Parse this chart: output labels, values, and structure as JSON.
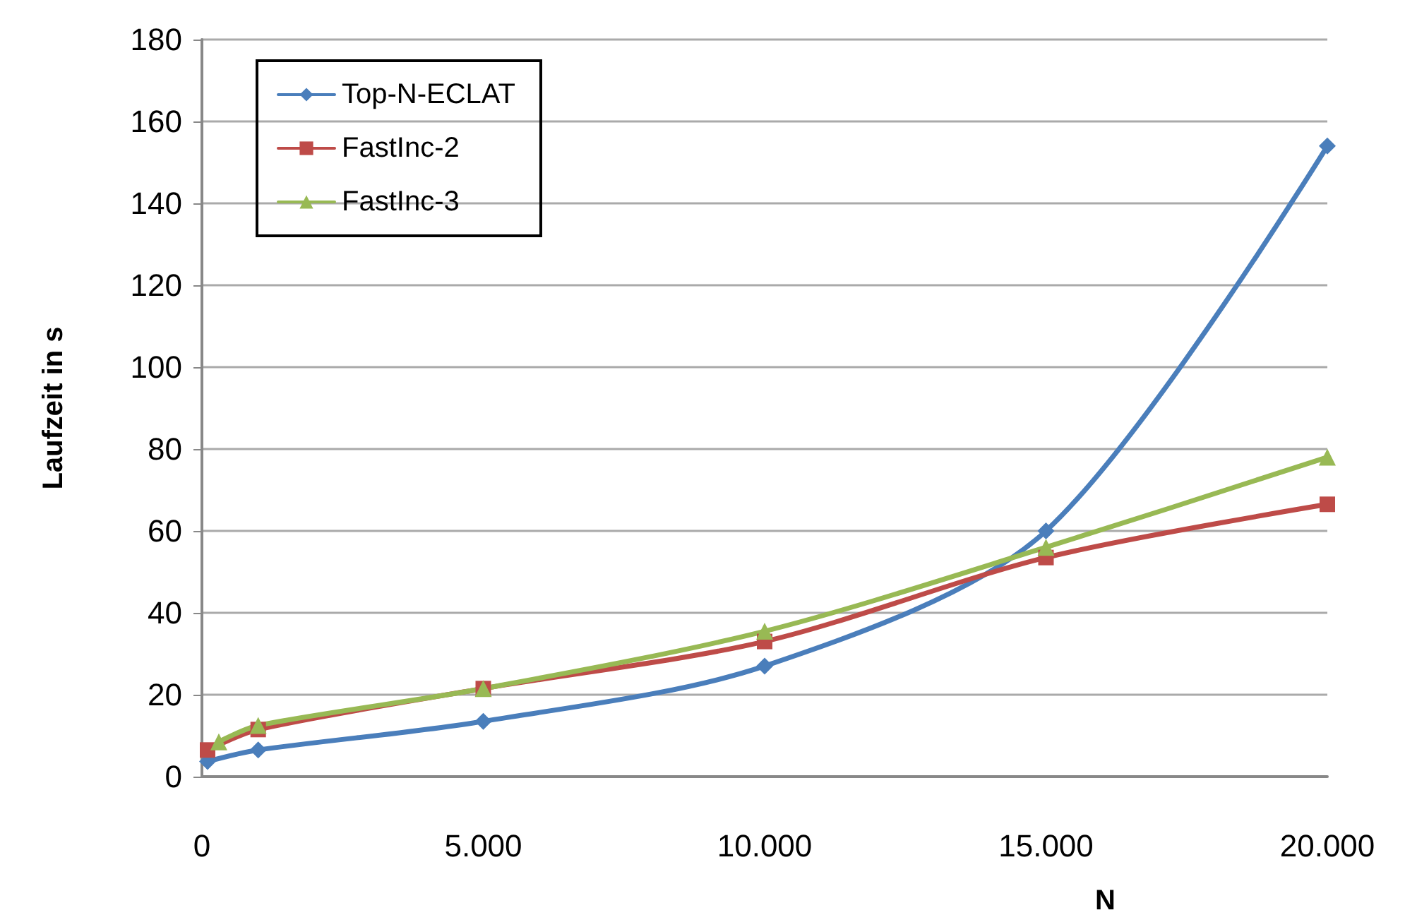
{
  "chart_data": {
    "type": "line",
    "xlabel": "N",
    "ylabel": "Laufzeit in s",
    "xlim": [
      0,
      20000
    ],
    "xticks": [
      0,
      {
        "value": 5000,
        "label": "5.000"
      },
      {
        "value": 10000,
        "label": "10.000"
      },
      {
        "value": 15000,
        "label": "15.000"
      },
      {
        "value": 20000,
        "label": "20.000"
      }
    ],
    "ylim": [
      0,
      180
    ],
    "yticks": [
      0,
      20,
      40,
      60,
      80,
      100,
      120,
      140,
      160,
      180
    ],
    "grid": "y",
    "legend": "top left",
    "line_style": "solid",
    "series": [
      {
        "name": "Top-N-ECLAT",
        "color": "#4a7ebb",
        "marker": "diamond",
        "x": [
          100,
          1000,
          5000,
          10000,
          15000,
          20000
        ],
        "values": [
          3.7,
          6.5,
          13.5,
          27,
          60,
          154
        ]
      },
      {
        "name": "FastInc-2",
        "color": "#be4b48",
        "marker": "square",
        "x": [
          100,
          1000,
          5000,
          10000,
          15000,
          20000
        ],
        "values": [
          6.5,
          11.5,
          21.5,
          33,
          53.5,
          66.5
        ]
      },
      {
        "name": "FastInc-3",
        "color": "#98b954",
        "marker": "triangle",
        "x": [
          300,
          1000,
          5000,
          10000,
          15000,
          20000
        ],
        "values": [
          8.5,
          12.5,
          21.5,
          35.5,
          56,
          78
        ]
      }
    ]
  }
}
